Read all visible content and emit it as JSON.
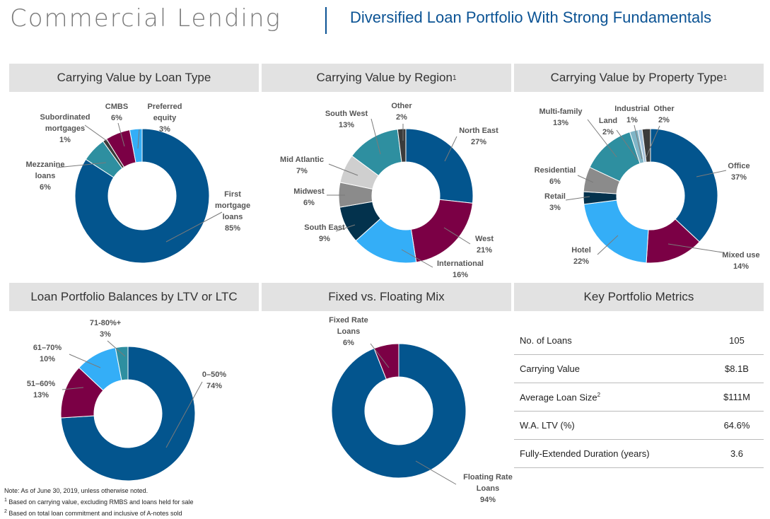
{
  "header": {
    "title": "Commercial Lending",
    "subtitle": "Diversified Loan Portfolio With Strong Fundamentals"
  },
  "colors": {
    "dark_blue": "#03558e",
    "maroon": "#7b0045",
    "teal": "#2e8fa0",
    "light_blue": "#34aef7",
    "navy": "#03324d",
    "gray": "#8b8b8b",
    "light_gray": "#cfcfcf",
    "dark_gray": "#3b3b3b",
    "pale_blue": "#a2bfd8"
  },
  "chart_data": [
    {
      "type": "pie",
      "title": "Carrying Value by Loan Type",
      "slices": [
        {
          "label": "First mortgage loans",
          "value": 85,
          "text": "85%",
          "color": "#03558e"
        },
        {
          "label": "Mezzanine loans",
          "value": 6,
          "text": "6%",
          "color": "#2e8fa0"
        },
        {
          "label": "Subordinated mortgages",
          "value": 1,
          "text": "1%",
          "color": "#3b3b3b"
        },
        {
          "label": "CMBS",
          "value": 6,
          "text": "6%",
          "color": "#7b0045"
        },
        {
          "label": "Preferred equity",
          "value": 3,
          "text": "3%",
          "color": "#34aef7"
        }
      ]
    },
    {
      "type": "pie",
      "title": "Carrying Value by Region",
      "title_sup": "1",
      "slices": [
        {
          "label": "North East",
          "value": 27,
          "text": "27%",
          "color": "#03558e"
        },
        {
          "label": "West",
          "value": 21,
          "text": "21%",
          "color": "#7b0045"
        },
        {
          "label": "International",
          "value": 16,
          "text": "16%",
          "color": "#34aef7"
        },
        {
          "label": "South East",
          "value": 9,
          "text": "9%",
          "color": "#03324d"
        },
        {
          "label": "Midwest",
          "value": 6,
          "text": "6%",
          "color": "#8b8b8b"
        },
        {
          "label": "Mid Atlantic",
          "value": 7,
          "text": "7%",
          "color": "#cfcfcf"
        },
        {
          "label": "South West",
          "value": 13,
          "text": "13%",
          "color": "#2e8fa0"
        },
        {
          "label": "Other",
          "value": 2,
          "text": "2%",
          "color": "#3b3b3b"
        }
      ]
    },
    {
      "type": "pie",
      "title": "Carrying Value by Property Type",
      "title_sup": "1",
      "slices": [
        {
          "label": "Office",
          "value": 37,
          "text": "37%",
          "color": "#03558e"
        },
        {
          "label": "Mixed use",
          "value": 14,
          "text": "14%",
          "color": "#7b0045"
        },
        {
          "label": "Hotel",
          "value": 22,
          "text": "22%",
          "color": "#34aef7"
        },
        {
          "label": "Retail",
          "value": 3,
          "text": "3%",
          "color": "#03324d"
        },
        {
          "label": "Residential",
          "value": 6,
          "text": "6%",
          "color": "#8b8b8b"
        },
        {
          "label": "Multi-family",
          "value": 13,
          "text": "13%",
          "color": "#2e8fa0"
        },
        {
          "label": "Land",
          "value": 2,
          "text": "2%",
          "color": "#7fb5c7"
        },
        {
          "label": "Industrial",
          "value": 1,
          "text": "1%",
          "color": "#a2bfd8"
        },
        {
          "label": "Other",
          "value": 2,
          "text": "2%",
          "color": "#3b3b3b"
        }
      ]
    },
    {
      "type": "pie",
      "title": "Loan Portfolio Balances by LTV or LTC",
      "slices": [
        {
          "label": "0–50%",
          "value": 74,
          "text": "74%",
          "color": "#03558e"
        },
        {
          "label": "51–60%",
          "value": 13,
          "text": "13%",
          "color": "#7b0045"
        },
        {
          "label": "61–70%",
          "value": 10,
          "text": "10%",
          "color": "#34aef7"
        },
        {
          "label": "71-80%+",
          "value": 3,
          "text": "3%",
          "color": "#2e8fa0"
        }
      ]
    },
    {
      "type": "pie",
      "title": "Fixed vs. Floating Mix",
      "slices": [
        {
          "label": "Floating Rate Loans",
          "value": 94,
          "text": "94%",
          "color": "#03558e"
        },
        {
          "label": "Fixed Rate Loans",
          "value": 6,
          "text": "6%",
          "color": "#7b0045"
        }
      ]
    }
  ],
  "metrics": {
    "title": "Key Portfolio Metrics",
    "rows": [
      {
        "label": "No. of Loans",
        "sup": "",
        "value": "105"
      },
      {
        "label": "Carrying Value",
        "sup": "",
        "value": "$8.1B"
      },
      {
        "label": "Average Loan Size",
        "sup": "2",
        "value": "$111M"
      },
      {
        "label": "W.A. LTV (%)",
        "sup": "",
        "value": "64.6%"
      },
      {
        "label": "Fully-Extended Duration (years)",
        "sup": "",
        "value": "3.6"
      }
    ]
  },
  "notes": [
    {
      "sup": "",
      "text": "Note: As of June 30, 2019, unless otherwise noted."
    },
    {
      "sup": "1",
      "text": " Based on carrying value, excluding RMBS and loans held for sale"
    },
    {
      "sup": "2",
      "text": " Based on total loan commitment and inclusive of A-notes sold"
    }
  ]
}
